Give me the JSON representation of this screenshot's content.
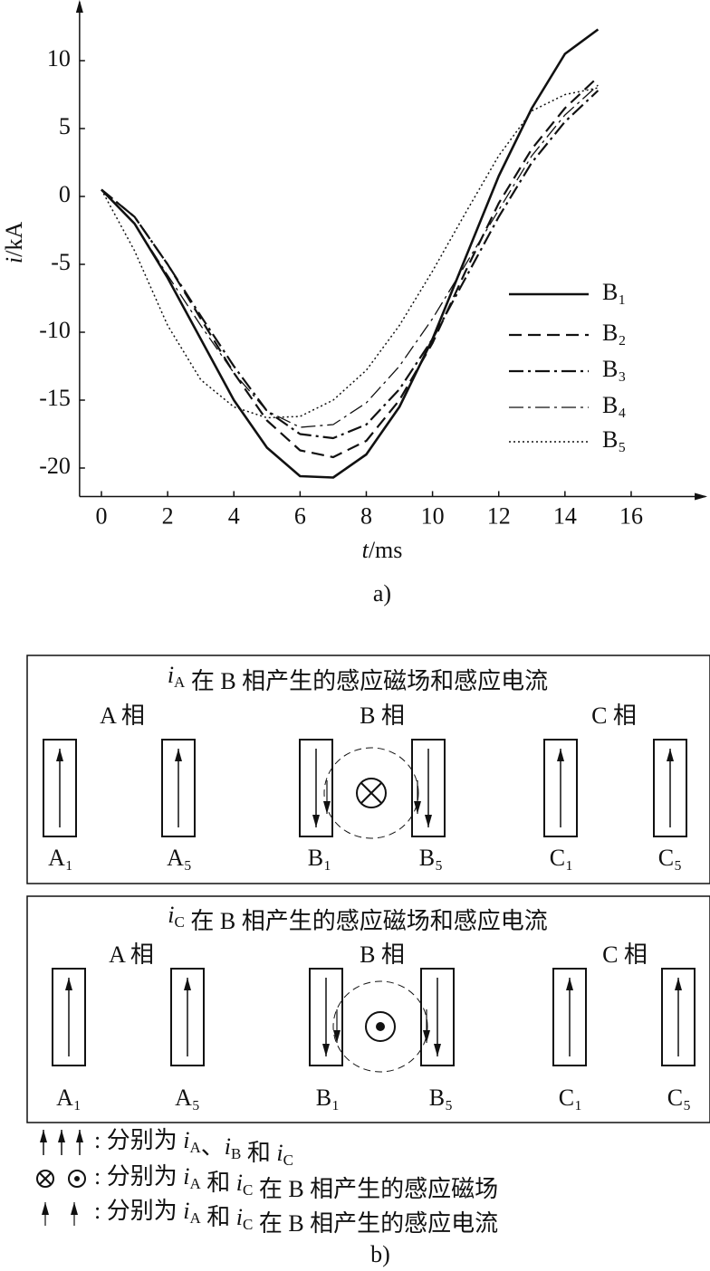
{
  "chart_data": {
    "type": "line",
    "caption": "a)",
    "x_label": [
      {
        "var": "t"
      },
      "/ms"
    ],
    "y_label": [
      {
        "var": "i"
      },
      "/kA"
    ],
    "xlim": [
      -0.66,
      18.3
    ],
    "ylim": [
      -22.1,
      14.47
    ],
    "xticks": [
      0,
      2,
      4,
      6,
      8,
      10,
      12,
      14,
      16
    ],
    "yticks": [
      10,
      5,
      0,
      -5,
      -10,
      -15,
      -20
    ],
    "x": [
      0,
      1,
      2,
      3,
      4,
      5,
      6,
      7,
      8,
      9,
      10,
      11,
      12,
      13,
      14,
      15
    ],
    "legend": "right",
    "series": [
      {
        "name": "B₁",
        "color": "#111",
        "dash": "solid",
        "width": 2.6,
        "values": [
          0.5,
          -2,
          -6,
          -10.5,
          -15,
          -18.5,
          -20.6,
          -20.7,
          -19,
          -15.5,
          -10.5,
          -4.5,
          1.5,
          6.5,
          10.5,
          12.3
        ]
      },
      {
        "name": "B₂",
        "color": "#111",
        "dash": "dashed",
        "width": 2.2,
        "values": [
          0.5,
          -1.5,
          -5,
          -9,
          -13,
          -16.5,
          -18.7,
          -19.2,
          -18,
          -15,
          -10.8,
          -5.5,
          -0.5,
          3.5,
          6.5,
          8.8
        ]
      },
      {
        "name": "B₃",
        "color": "#111",
        "dash": "dashdot",
        "width": 2.2,
        "values": [
          0.5,
          -1.5,
          -5,
          -8.8,
          -12.5,
          -15.8,
          -17.5,
          -17.8,
          -16.8,
          -14.2,
          -10.5,
          -6,
          -1.5,
          2.5,
          5.5,
          7.8
        ]
      },
      {
        "name": "B₄",
        "color": "#111",
        "dash": "dashdot",
        "width": 1.3,
        "values": [
          0.5,
          -2,
          -5.8,
          -9.5,
          -13,
          -15.8,
          -17,
          -16.8,
          -15.2,
          -12.5,
          -9,
          -5,
          -1,
          3,
          6,
          8.2
        ]
      },
      {
        "name": "B₅",
        "color": "#111",
        "dash": "dotted",
        "width": 1.5,
        "values": [
          0.5,
          -4,
          -9.5,
          -13.5,
          -15.5,
          -16.3,
          -16.2,
          -15,
          -12.8,
          -9.5,
          -5.5,
          -1.2,
          3,
          6.3,
          7.5,
          8
        ]
      }
    ]
  },
  "diagram": {
    "caption": "b)",
    "panels": [
      {
        "title": [
          {
            "var": "i",
            "sub": "A"
          },
          " 在 B 相产生的感应磁场和感应电流"
        ],
        "phases": [
          "A 相",
          "B 相",
          "C 相"
        ],
        "conductors": [
          "A₁",
          "A₅",
          "B₁",
          "B₅",
          "C₁",
          "C₅"
        ]
      },
      {
        "title": [
          {
            "var": "i",
            "sub": "C"
          },
          " 在 B 相产生的感应磁场和感应电流"
        ],
        "phases": [
          "A 相",
          "B 相",
          "C 相"
        ],
        "conductors": [
          "A₁",
          "A₅",
          "B₁",
          "B₅",
          "C₁",
          "C₅"
        ]
      }
    ],
    "legend": [
      [
        ": 分别为 ",
        {
          "var": "i",
          "sub": "A"
        },
        "、",
        {
          "var": "i",
          "sub": "B"
        },
        " 和 ",
        {
          "var": "i",
          "sub": "C"
        }
      ],
      [
        ": 分别为 ",
        {
          "var": "i",
          "sub": "A"
        },
        " 和 ",
        {
          "var": "i",
          "sub": "C"
        },
        " 在 B 相产生的感应磁场"
      ],
      [
        ": 分别为 ",
        {
          "var": "i",
          "sub": "A"
        },
        " 和 ",
        {
          "var": "i",
          "sub": "C"
        },
        " 在 B 相产生的感应电流"
      ]
    ]
  }
}
